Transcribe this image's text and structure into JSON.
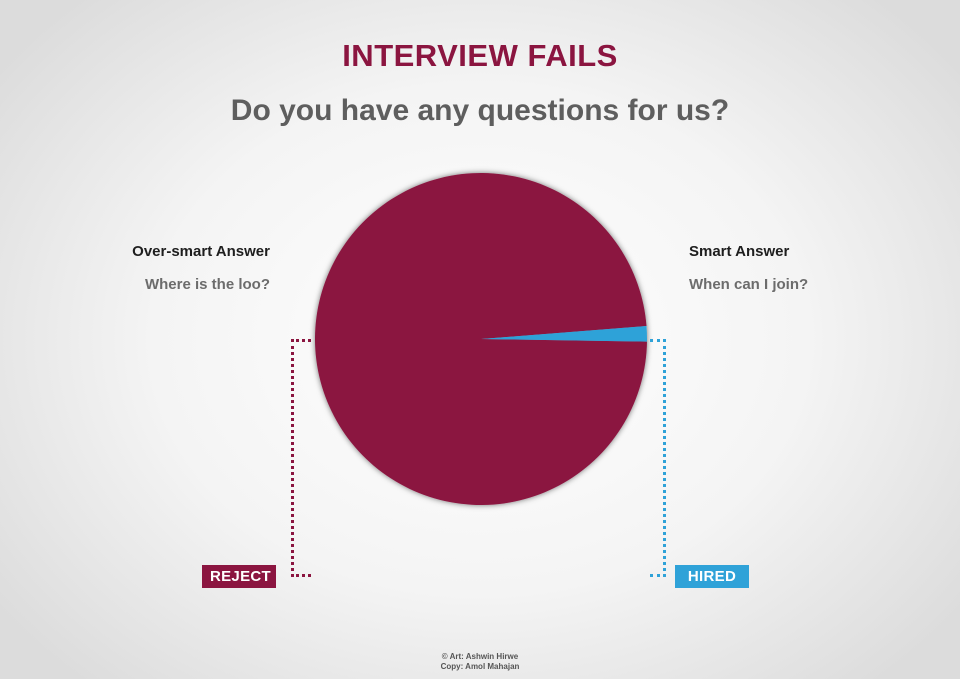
{
  "header": {
    "title": "INTERVIEW FAILS",
    "subtitle": "Do you have any questions for us?"
  },
  "left_label": {
    "heading": "Over-smart Answer",
    "answer": "Where is the loo?",
    "outcome": "REJECT"
  },
  "right_label": {
    "heading": "Smart Answer",
    "answer": "When can I join?",
    "outcome": "HIRED"
  },
  "credits": {
    "art": "© Art: Ashwin Hirwe",
    "copy": "Copy: Amol Mahajan"
  },
  "colors": {
    "title": "#8b1540",
    "subtitle": "#5e5e5e",
    "reject": "#8b1540",
    "hired": "#2fa2d8"
  },
  "chart_data": {
    "type": "pie",
    "title": "Do you have any questions for us?",
    "slices": [
      {
        "label": "Over-smart Answer",
        "value": 98.5,
        "color": "#8b1540"
      },
      {
        "label": "Smart Answer",
        "value": 1.5,
        "color": "#2fa2d8"
      }
    ],
    "legend": "none"
  }
}
